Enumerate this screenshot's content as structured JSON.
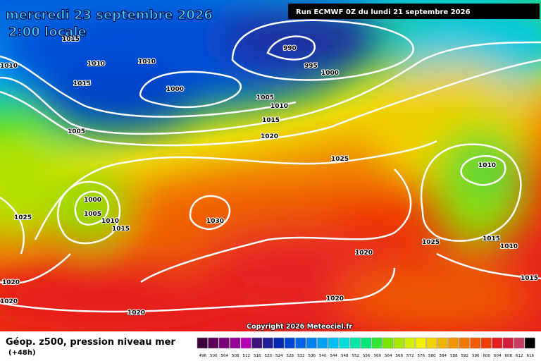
{
  "header": {
    "date": "mercredi 23 septembre 2026",
    "time": "2:00 locale",
    "run": "Run ECMWF 0Z du lundi 21 septembre 2026"
  },
  "map": {
    "isobar_labels": [
      "1015",
      "990",
      "1010",
      "1010",
      "1010",
      "995",
      "1000",
      "1015",
      "1000",
      "1005",
      "1010",
      "1015",
      "1005",
      "1020",
      "1025",
      "1010",
      "1000",
      "1005",
      "1010",
      "1015",
      "1025",
      "1030",
      "1025",
      "1015",
      "1010",
      "1020",
      "1015",
      "1020",
      "1020",
      "1020",
      "1020"
    ],
    "copyright": "Copyright 2026 Meteociel.fr"
  },
  "legend": {
    "title": "Géop. z500, pression niveau mer",
    "lead": "(+48h)",
    "colorbar": {
      "labels": [
        "496",
        "500",
        "504",
        "508",
        "512",
        "516",
        "520",
        "524",
        "528",
        "532",
        "536",
        "540",
        "544",
        "548",
        "552",
        "556",
        "560",
        "564",
        "568",
        "572",
        "576",
        "580",
        "584",
        "588",
        "592",
        "596",
        "600",
        "604",
        "608",
        "612",
        "616"
      ],
      "colors": [
        "#3c003c",
        "#5a005a",
        "#780078",
        "#960096",
        "#b400b4",
        "#3c1478",
        "#1e1e96",
        "#0028b4",
        "#0046d2",
        "#0064e6",
        "#0082f0",
        "#00a0f0",
        "#00bef0",
        "#00dcdc",
        "#00e6aa",
        "#00e678",
        "#32e632",
        "#78e600",
        "#aae600",
        "#d2f000",
        "#f0f000",
        "#f0d200",
        "#f0b400",
        "#f09600",
        "#f07800",
        "#f05a00",
        "#f03c00",
        "#e61e1e",
        "#d21e3c",
        "#c83c64",
        "#000000"
      ]
    }
  }
}
